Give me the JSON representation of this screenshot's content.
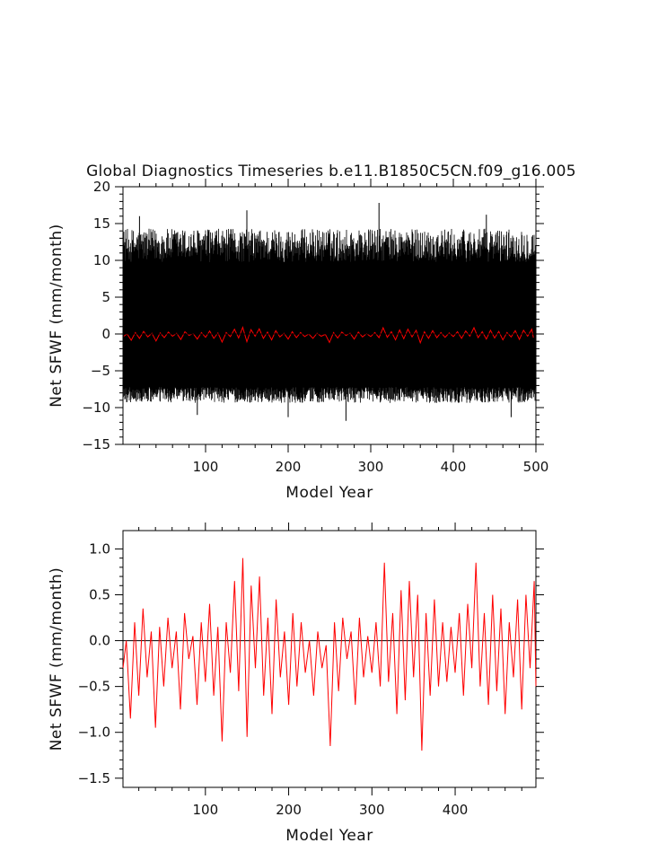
{
  "figure": {
    "title": "Global Diagnostics Timeseries b.e11.B1850C5CN.f09_g16.005"
  },
  "colors": {
    "monthly_series": "#000000",
    "annual_series": "#ff0000",
    "zero_line": "#000000",
    "axes": "#000000"
  },
  "chart_data": [
    {
      "type": "line",
      "title": "Global Diagnostics Timeseries b.e11.B1850C5CN.f09_g16.005",
      "xlabel": "Model Year",
      "ylabel": "Net SFWF (mm/month)",
      "xlim": [
        0,
        500
      ],
      "ylim": [
        -15,
        20
      ],
      "xticks": [
        100,
        200,
        300,
        400,
        500
      ],
      "yticks": [
        -15,
        -10,
        -5,
        0,
        5,
        10,
        15,
        20
      ],
      "zero_line": true,
      "grid": false,
      "series": [
        {
          "name": "",
          "color": "#000000",
          "resolution": "monthly",
          "x_start": 0,
          "x_end": 500,
          "max_approx": 17.8,
          "min_approx": -11.8,
          "typical_upper_envelope": 13,
          "typical_lower_envelope": -8.5,
          "mean_approx": -0.2
        },
        {
          "name": "",
          "color": "#ff0000",
          "resolution": "annual",
          "x_start": 1,
          "x_end": 500,
          "range_approx": [
            -1.2,
            0.9
          ]
        }
      ]
    },
    {
      "type": "line",
      "xlabel": "Model Year",
      "ylabel": "Net SFWF (mm/month)",
      "xlim": [
        1,
        497
      ],
      "ylim": [
        -1.6,
        1.2
      ],
      "xticks": [
        100,
        200,
        300,
        400
      ],
      "yticks": [
        -1.5,
        -1.0,
        -0.5,
        0.0,
        0.5,
        1.0
      ],
      "zero_line": true,
      "grid": false,
      "series": [
        {
          "name": "",
          "color": "#ff0000",
          "resolution": "annual",
          "x": [
            1,
            5,
            10,
            15,
            20,
            25,
            30,
            35,
            40,
            45,
            50,
            55,
            60,
            65,
            70,
            75,
            80,
            85,
            90,
            95,
            100,
            105,
            110,
            115,
            120,
            125,
            130,
            135,
            140,
            145,
            150,
            155,
            160,
            165,
            170,
            175,
            180,
            185,
            190,
            195,
            200,
            205,
            210,
            215,
            220,
            225,
            230,
            235,
            240,
            245,
            250,
            255,
            260,
            265,
            270,
            275,
            280,
            285,
            290,
            295,
            300,
            305,
            310,
            315,
            320,
            325,
            330,
            335,
            340,
            345,
            350,
            355,
            360,
            365,
            370,
            375,
            380,
            385,
            390,
            395,
            400,
            405,
            410,
            415,
            420,
            425,
            430,
            435,
            440,
            445,
            450,
            455,
            460,
            465,
            470,
            475,
            480,
            485,
            490,
            495,
            497
          ],
          "values": [
            -0.3,
            0.0,
            -0.85,
            0.2,
            -0.6,
            0.35,
            -0.4,
            0.1,
            -0.95,
            0.15,
            -0.5,
            0.25,
            -0.3,
            0.1,
            -0.75,
            0.3,
            -0.2,
            0.05,
            -0.7,
            0.2,
            -0.45,
            0.4,
            -0.6,
            0.15,
            -1.1,
            0.2,
            -0.35,
            0.65,
            -0.55,
            0.9,
            -1.05,
            0.6,
            -0.3,
            0.7,
            -0.6,
            0.25,
            -0.8,
            0.45,
            -0.4,
            0.1,
            -0.7,
            0.3,
            -0.5,
            0.2,
            -0.35,
            0.0,
            -0.6,
            0.1,
            -0.3,
            -0.05,
            -1.15,
            0.2,
            -0.55,
            0.25,
            -0.2,
            0.1,
            -0.7,
            0.25,
            -0.4,
            0.05,
            -0.35,
            0.2,
            -0.5,
            0.85,
            -0.45,
            0.3,
            -0.8,
            0.55,
            -0.65,
            0.65,
            -0.4,
            0.5,
            -1.2,
            0.3,
            -0.6,
            0.45,
            -0.5,
            0.2,
            -0.45,
            0.15,
            -0.35,
            0.3,
            -0.6,
            0.4,
            -0.3,
            0.85,
            -0.5,
            0.3,
            -0.7,
            0.5,
            -0.55,
            0.35,
            -0.8,
            0.2,
            -0.4,
            0.45,
            -0.75,
            0.5,
            -0.3,
            0.65,
            -0.5
          ]
        }
      ]
    }
  ]
}
